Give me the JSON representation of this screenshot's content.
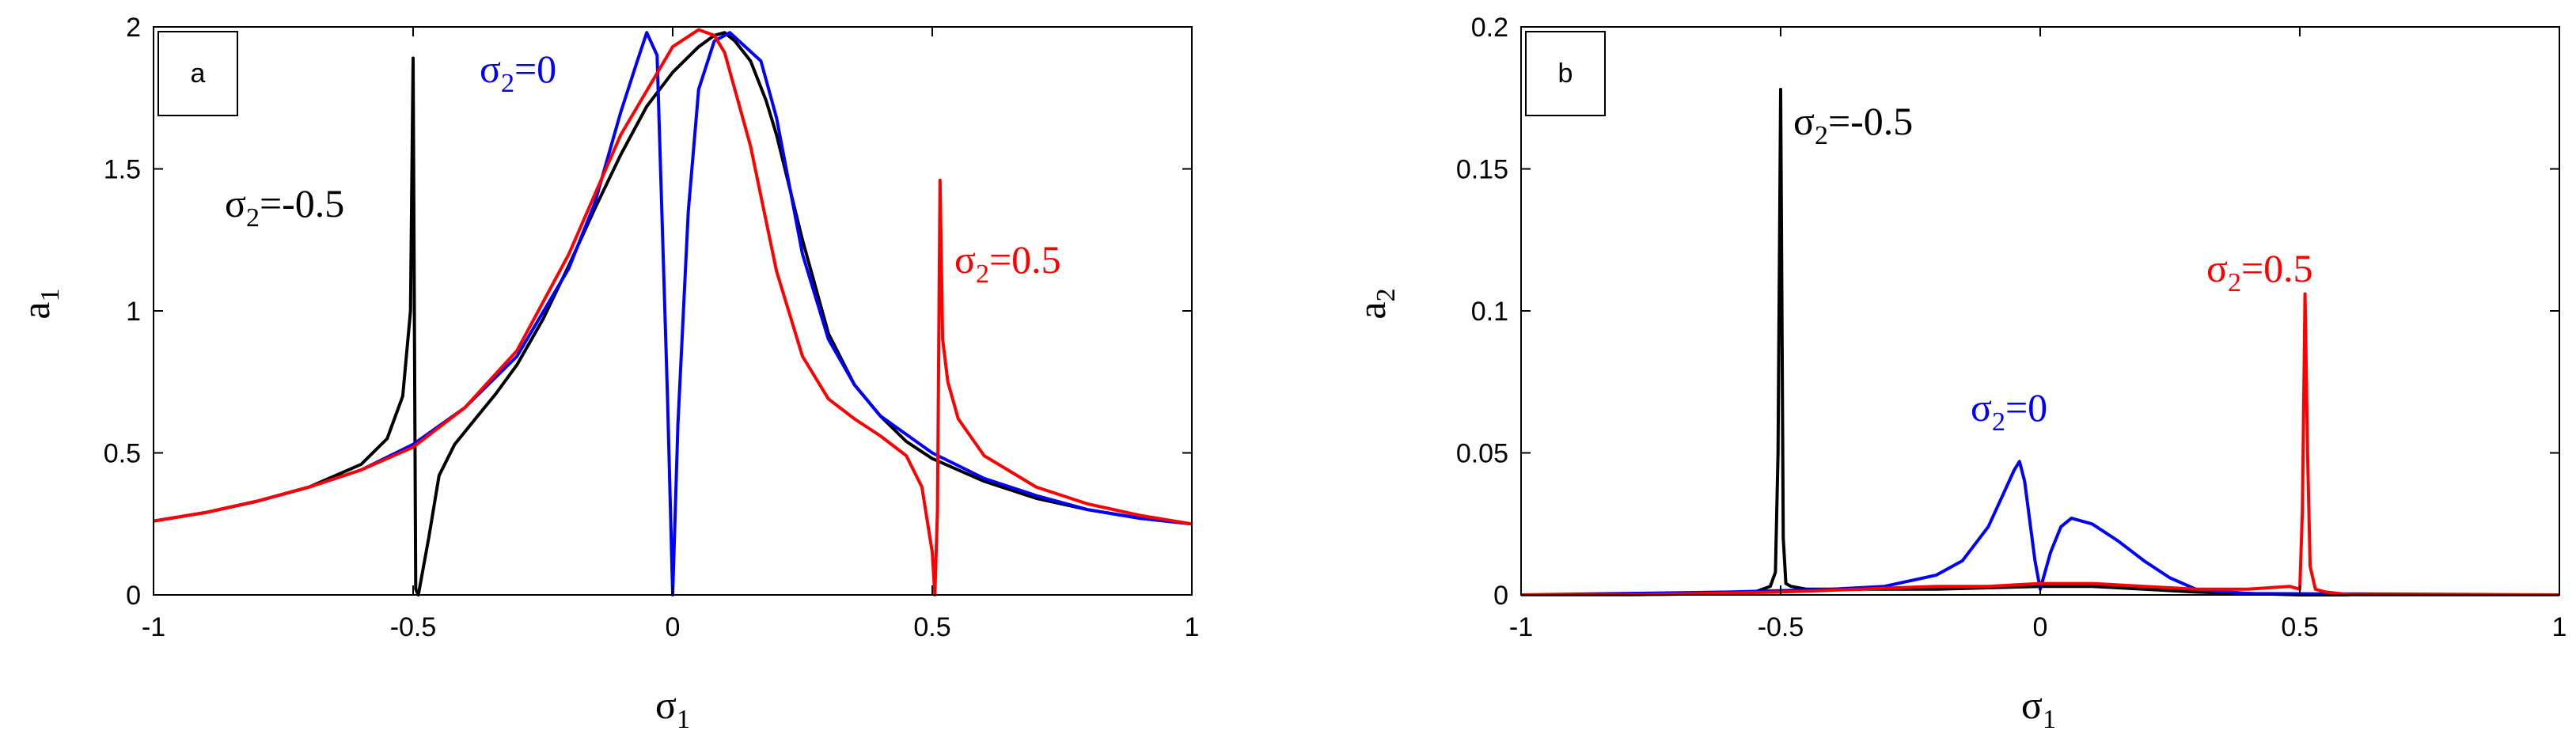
{
  "chart_data": [
    {
      "panel_label": "a",
      "type": "line",
      "xlabel": {
        "base": "σ",
        "sub": "1"
      },
      "ylabel": {
        "base": "a",
        "sub": "1"
      },
      "xlim": [
        -1,
        1
      ],
      "ylim": [
        0,
        2
      ],
      "xticks": [
        -1,
        -0.5,
        0,
        0.5,
        1
      ],
      "xtick_labels": [
        "-1",
        "-0.5",
        "0",
        "0.5",
        "1"
      ],
      "yticks": [
        0,
        0.5,
        1,
        1.5,
        2
      ],
      "ytick_labels": [
        "0",
        "0.5",
        "1",
        "1.5",
        "2"
      ],
      "grid": false,
      "series": [
        {
          "color": "#000000",
          "x": [
            -1,
            -0.9,
            -0.8,
            -0.7,
            -0.6,
            -0.55,
            -0.52,
            -0.505,
            -0.5,
            -0.495,
            -0.49,
            -0.47,
            -0.45,
            -0.42,
            -0.38,
            -0.34,
            -0.3,
            -0.25,
            -0.2,
            -0.15,
            -0.1,
            -0.05,
            0,
            0.05,
            0.08,
            0.1,
            0.12,
            0.15,
            0.18,
            0.2,
            0.25,
            0.3,
            0.35,
            0.4,
            0.45,
            0.5,
            0.6,
            0.7,
            0.8,
            0.9,
            1
          ],
          "y": [
            0.26,
            0.29,
            0.33,
            0.38,
            0.46,
            0.55,
            0.7,
            1.0,
            1.89,
            0.02,
            0.0,
            0.2,
            0.42,
            0.53,
            0.62,
            0.71,
            0.81,
            0.97,
            1.16,
            1.36,
            1.55,
            1.72,
            1.84,
            1.93,
            1.97,
            1.98,
            1.95,
            1.88,
            1.74,
            1.62,
            1.25,
            0.92,
            0.74,
            0.63,
            0.54,
            0.48,
            0.4,
            0.34,
            0.3,
            0.27,
            0.25
          ]
        },
        {
          "color": "#0000ff",
          "x": [
            -1,
            -0.9,
            -0.8,
            -0.7,
            -0.6,
            -0.5,
            -0.4,
            -0.3,
            -0.2,
            -0.15,
            -0.1,
            -0.07,
            -0.05,
            -0.03,
            -0.01,
            0,
            0.01,
            0.03,
            0.05,
            0.08,
            0.11,
            0.14,
            0.17,
            0.2,
            0.25,
            0.3,
            0.35,
            0.4,
            0.5,
            0.6,
            0.7,
            0.8,
            0.9,
            1
          ],
          "y": [
            0.26,
            0.29,
            0.33,
            0.38,
            0.44,
            0.53,
            0.66,
            0.84,
            1.15,
            1.38,
            1.7,
            1.87,
            1.98,
            1.9,
            0.7,
            0.0,
            0.6,
            1.35,
            1.78,
            1.95,
            1.98,
            1.93,
            1.88,
            1.68,
            1.2,
            0.9,
            0.74,
            0.63,
            0.5,
            0.41,
            0.35,
            0.3,
            0.27,
            0.25
          ]
        },
        {
          "color": "#ff0000",
          "x": [
            -1,
            -0.9,
            -0.8,
            -0.7,
            -0.6,
            -0.5,
            -0.4,
            -0.3,
            -0.2,
            -0.1,
            0,
            0.05,
            0.08,
            0.1,
            0.15,
            0.2,
            0.25,
            0.3,
            0.35,
            0.4,
            0.45,
            0.48,
            0.5,
            0.505,
            0.51,
            0.515,
            0.52,
            0.53,
            0.55,
            0.6,
            0.7,
            0.8,
            0.9,
            1
          ],
          "y": [
            0.26,
            0.29,
            0.33,
            0.38,
            0.44,
            0.52,
            0.66,
            0.86,
            1.2,
            1.62,
            1.93,
            1.99,
            1.97,
            1.91,
            1.58,
            1.14,
            0.84,
            0.69,
            0.62,
            0.56,
            0.49,
            0.38,
            0.15,
            0.0,
            0.3,
            1.46,
            0.9,
            0.75,
            0.62,
            0.49,
            0.38,
            0.32,
            0.28,
            0.25
          ]
        }
      ],
      "annotations": [
        {
          "base": "σ",
          "sub": "2",
          "suffix": "=-0.5",
          "color": "#000000"
        },
        {
          "base": "σ",
          "sub": "2",
          "suffix": "=0",
          "color": "#0000ff"
        },
        {
          "base": "σ",
          "sub": "2",
          "suffix": "=0.5",
          "color": "#ff0000"
        }
      ]
    },
    {
      "panel_label": "b",
      "type": "line",
      "xlabel": {
        "base": "σ",
        "sub": "1"
      },
      "ylabel": {
        "base": "a",
        "sub": "2"
      },
      "xlim": [
        -1,
        1
      ],
      "ylim": [
        0,
        0.2
      ],
      "xticks": [
        -1,
        -0.5,
        0,
        0.5,
        1
      ],
      "xtick_labels": [
        "-1",
        "-0.5",
        "0",
        "0.5",
        "1"
      ],
      "yticks": [
        0,
        0.05,
        0.1,
        0.15,
        0.2
      ],
      "ytick_labels": [
        "0",
        "0.05",
        "0.1",
        "0.15",
        "0.2"
      ],
      "grid": false,
      "series": [
        {
          "color": "#000000",
          "x": [
            -1,
            -0.8,
            -0.6,
            -0.55,
            -0.52,
            -0.51,
            -0.505,
            -0.5,
            -0.495,
            -0.49,
            -0.48,
            -0.45,
            -0.4,
            -0.2,
            0,
            0.1,
            0.2,
            0.3,
            0.5,
            1
          ],
          "y": [
            0,
            0,
            0.0005,
            0.001,
            0.003,
            0.008,
            0.05,
            0.178,
            0.02,
            0.004,
            0.003,
            0.002,
            0.002,
            0.002,
            0.003,
            0.003,
            0.002,
            0.001,
            0,
            0
          ]
        },
        {
          "color": "#0000ff",
          "x": [
            -1,
            -0.8,
            -0.6,
            -0.4,
            -0.3,
            -0.2,
            -0.15,
            -0.1,
            -0.07,
            -0.05,
            -0.04,
            -0.03,
            -0.01,
            0,
            0.02,
            0.04,
            0.06,
            0.1,
            0.15,
            0.2,
            0.25,
            0.3,
            0.4,
            1
          ],
          "y": [
            0,
            0.0005,
            0.001,
            0.002,
            0.003,
            0.007,
            0.012,
            0.024,
            0.036,
            0.044,
            0.047,
            0.04,
            0.012,
            0.002,
            0.015,
            0.024,
            0.027,
            0.025,
            0.019,
            0.012,
            0.006,
            0.002,
            0.0005,
            0
          ]
        },
        {
          "color": "#ff0000",
          "x": [
            -1,
            -0.8,
            -0.5,
            -0.2,
            -0.1,
            0,
            0.1,
            0.2,
            0.3,
            0.4,
            0.48,
            0.5,
            0.505,
            0.51,
            0.515,
            0.52,
            0.53,
            0.55,
            0.6,
            0.8,
            1
          ],
          "y": [
            0,
            0,
            0.001,
            0.003,
            0.003,
            0.004,
            0.004,
            0.003,
            0.002,
            0.002,
            0.003,
            0.002,
            0.03,
            0.106,
            0.05,
            0.01,
            0.002,
            0.001,
            0,
            0,
            0
          ]
        }
      ],
      "annotations": [
        {
          "base": "σ",
          "sub": "2",
          "suffix": "=-0.5",
          "color": "#000000"
        },
        {
          "base": "σ",
          "sub": "2",
          "suffix": "=0",
          "color": "#0000ff"
        },
        {
          "base": "σ",
          "sub": "2",
          "suffix": "=0.5",
          "color": "#ff0000"
        }
      ]
    }
  ]
}
